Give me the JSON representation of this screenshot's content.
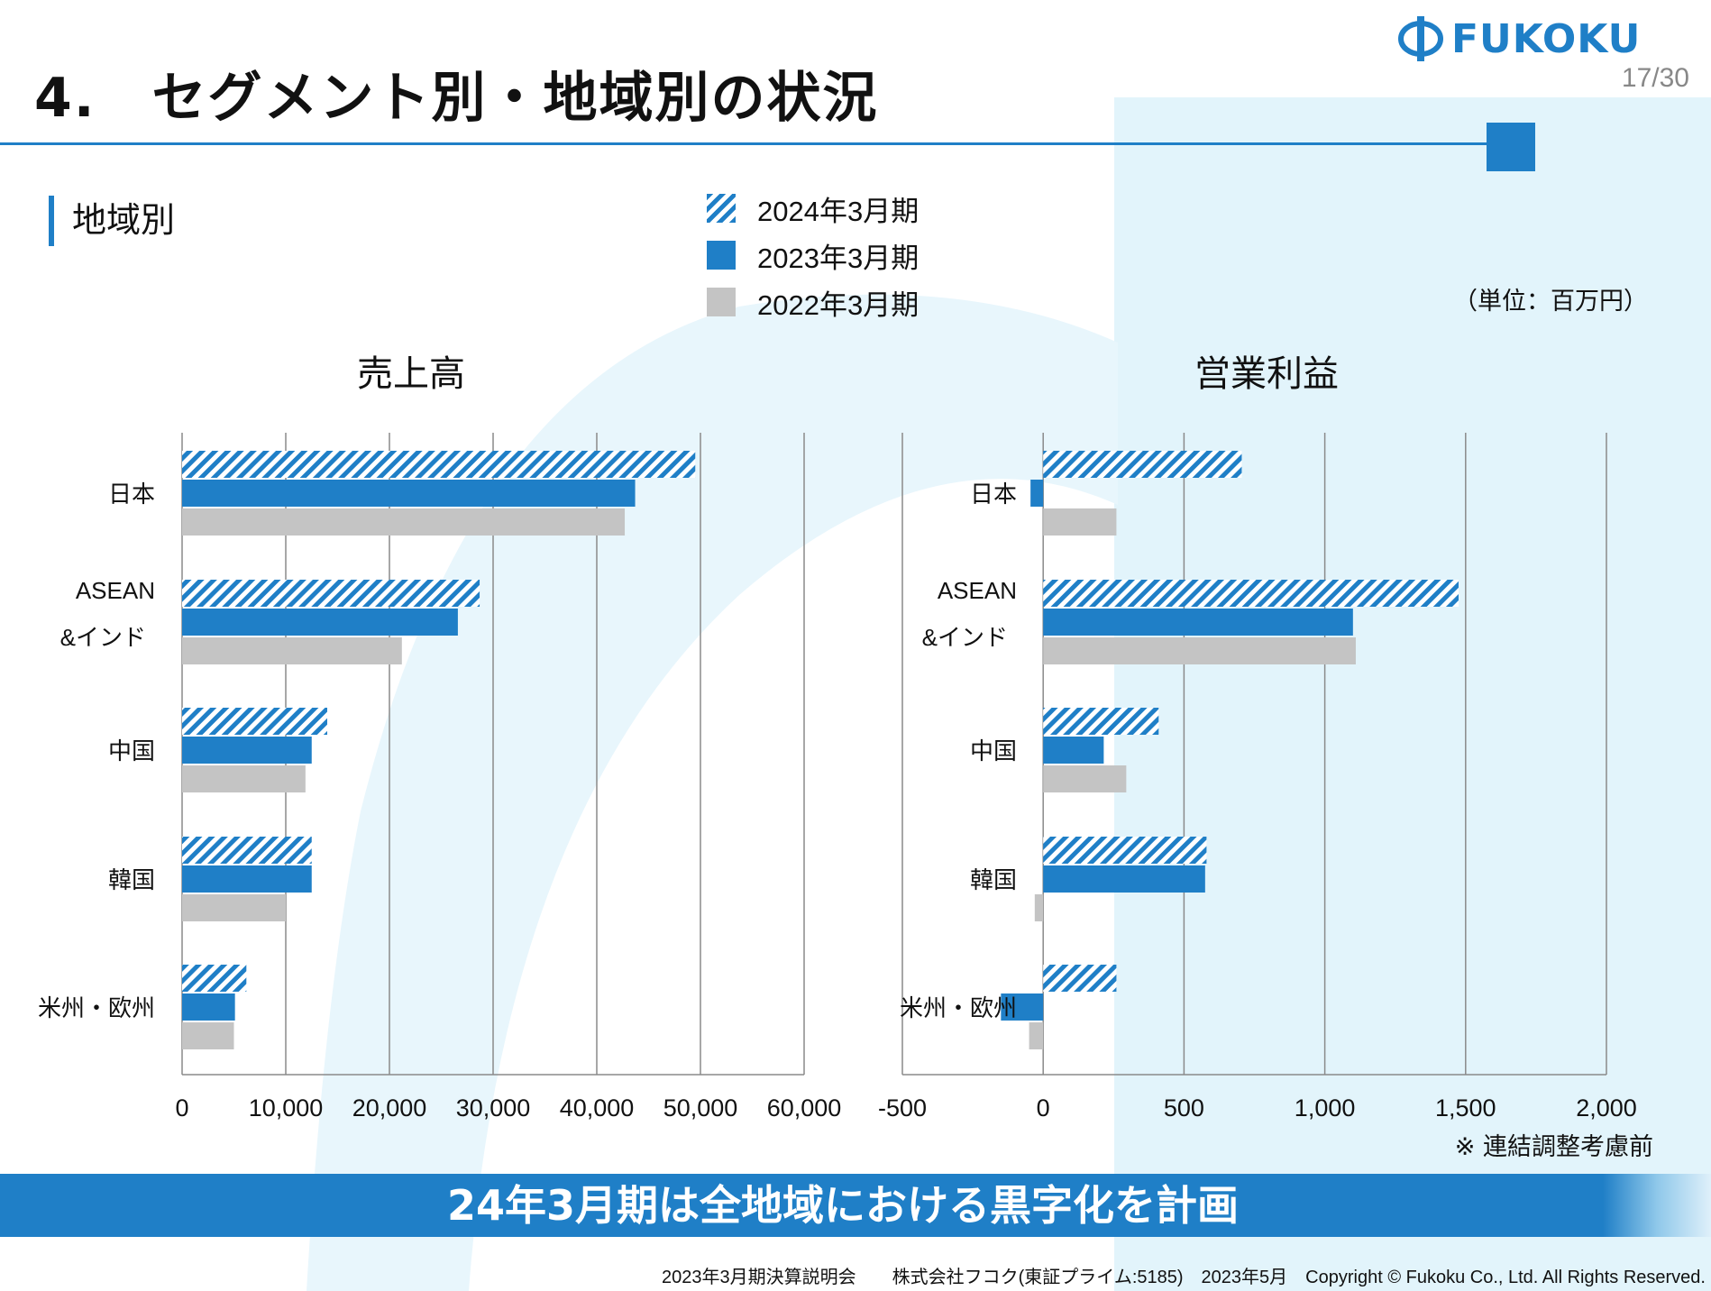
{
  "slide": {
    "title": "4.　セグメント別・地域別の状況",
    "section_label": "地域別",
    "page_number": "17/30",
    "unit_label": "（単位：百万円）",
    "note": "※ 連結調整考慮前",
    "banner": "24年3月期は全地域における黒字化を計画",
    "footer": "2023年3月期決算説明会　　株式会社フコク(東証プライム:5185)　2023年5月　Copyright © Fukoku Co., Ltd.  All Rights Reserved.",
    "logo_text": "FUKOKU",
    "legend": [
      {
        "label": "2024年3月期"
      },
      {
        "label": "2023年3月期"
      },
      {
        "label": "2022年3月期"
      }
    ]
  },
  "colors": {
    "accent": "#1f7fc7",
    "gray_bar": "#c4c4c4",
    "background_panel": "#e2f4fb"
  },
  "chart_data": [
    {
      "type": "bar",
      "orientation": "horizontal",
      "title": "売上高",
      "categories": [
        "日本",
        "ASEAN\n&インド",
        "中国",
        "韓国",
        "米州・欧州"
      ],
      "series": [
        {
          "name": "2024年3月期",
          "values": [
            49500,
            28700,
            14000,
            12500,
            6200
          ]
        },
        {
          "name": "2023年3月期",
          "values": [
            43700,
            26600,
            12500,
            12500,
            5100
          ]
        },
        {
          "name": "2022年3月期",
          "values": [
            42700,
            21200,
            11900,
            10000,
            5000
          ]
        }
      ],
      "xlim": [
        0,
        60000
      ],
      "xticks": [
        "0",
        "10,000",
        "20,000",
        "30,000",
        "40,000",
        "50,000",
        "60,000"
      ],
      "tick_values": [
        0,
        10000,
        20000,
        30000,
        40000,
        50000,
        60000
      ],
      "grid": true
    },
    {
      "type": "bar",
      "orientation": "horizontal",
      "title": "営業利益",
      "categories": [
        "日本",
        "ASEAN\n&インド",
        "中国",
        "韓国",
        "米州・欧州"
      ],
      "series": [
        {
          "name": "2024年3月期",
          "values": [
            705,
            1475,
            410,
            580,
            260
          ]
        },
        {
          "name": "2023年3月期",
          "values": [
            -45,
            1100,
            215,
            575,
            -150
          ]
        },
        {
          "name": "2022年3月期",
          "values": [
            260,
            1110,
            295,
            -30,
            -50
          ]
        }
      ],
      "xlim": [
        -500,
        2000
      ],
      "xticks": [
        "-500",
        "0",
        "500",
        "1,000",
        "1,500",
        "2,000"
      ],
      "tick_values": [
        -500,
        0,
        500,
        1000,
        1500,
        2000
      ],
      "grid": true
    }
  ]
}
